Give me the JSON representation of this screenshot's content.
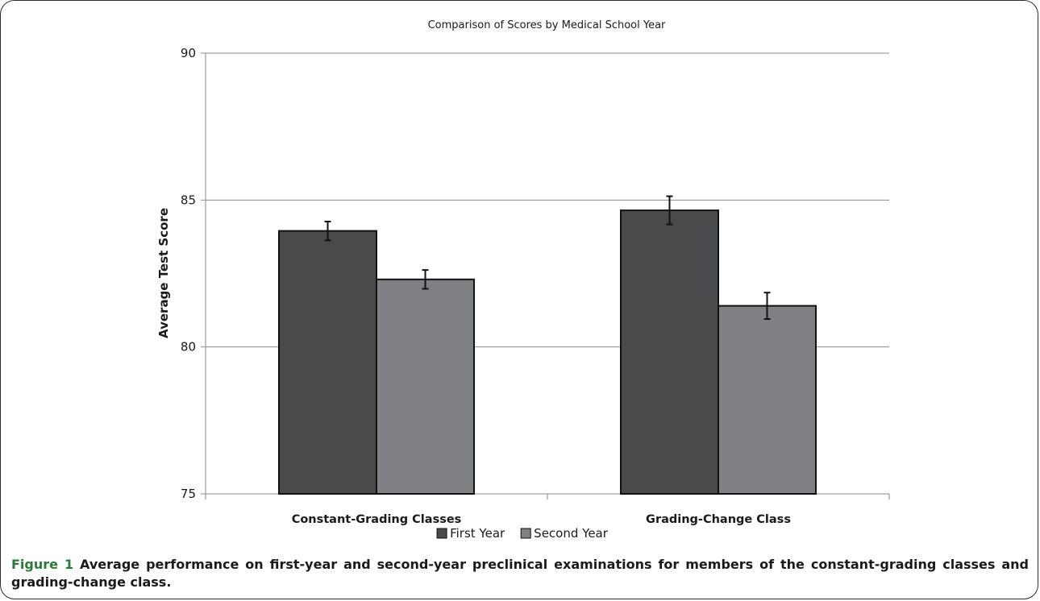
{
  "chart_data": {
    "type": "bar",
    "title": "Comparison of Scores by Medical School Year",
    "xlabel": "",
    "ylabel": "Average Test Score",
    "ylim": [
      75,
      90
    ],
    "yticks": [
      75,
      80,
      85,
      90
    ],
    "categories": [
      "Constant-Grading Classes",
      "Grading-Change Class"
    ],
    "series": [
      {
        "name": "First Year",
        "color": "#494a4c",
        "values": [
          83.95,
          84.65
        ],
        "error": [
          0.32,
          0.48
        ]
      },
      {
        "name": "Second Year",
        "color": "#808184",
        "values": [
          82.3,
          81.4
        ],
        "error": [
          0.32,
          0.45
        ]
      }
    ],
    "grid": true,
    "legend": "bottom"
  },
  "caption": {
    "label": "Figure 1",
    "text": "Average performance on first-year and second-year preclinical examinations for members of the constant-grading classes and grading-change class."
  }
}
